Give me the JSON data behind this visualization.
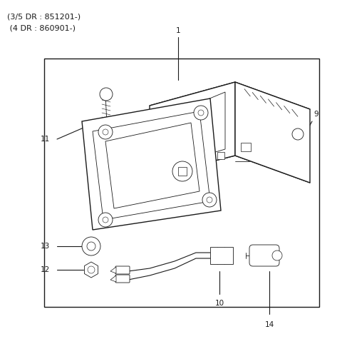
{
  "bg_color": "#ffffff",
  "lc": "#1a1a1a",
  "lw_main": 1.0,
  "lw_thin": 0.6,
  "figsize": [
    4.8,
    4.82
  ],
  "dpi": 100,
  "title1": "(3/5 DR : 851201-)",
  "title2": " (4 DR : 860901-)",
  "title_fs": 8.0,
  "label_fs": 7.5,
  "border": [
    0.14,
    0.09,
    0.8,
    0.8
  ]
}
